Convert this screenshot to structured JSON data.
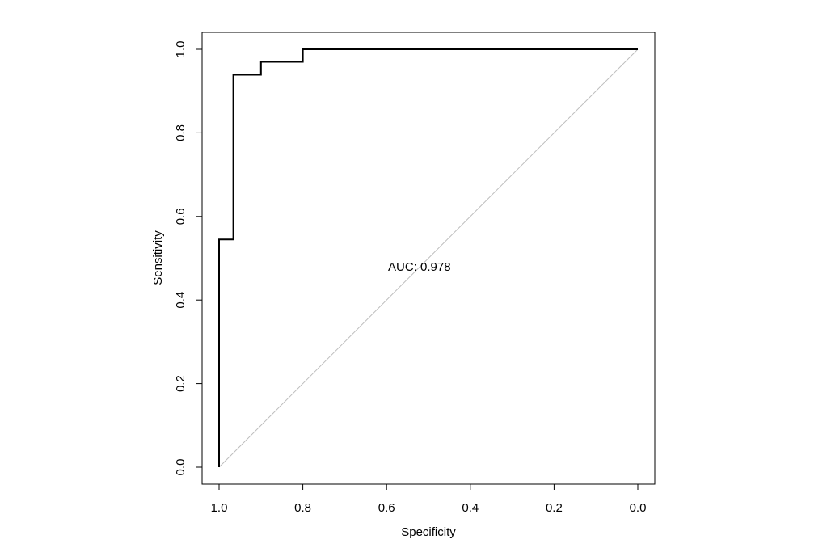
{
  "chart_data": {
    "type": "line",
    "title": "",
    "xlabel": "Specificity",
    "ylabel": "Sensitivity",
    "xlim": [
      1.0,
      0.0
    ],
    "ylim": [
      0.0,
      1.0
    ],
    "x_reversed": true,
    "grid": false,
    "legend": "none",
    "x_ticks": [
      "1.0",
      "0.8",
      "0.6",
      "0.4",
      "0.2",
      "0.0"
    ],
    "y_ticks": [
      "0.0",
      "0.2",
      "0.4",
      "0.6",
      "0.8",
      "1.0"
    ],
    "x_tick_values": [
      1.0,
      0.8,
      0.6,
      0.4,
      0.2,
      0.0
    ],
    "y_tick_values": [
      0.0,
      0.2,
      0.4,
      0.6,
      0.8,
      1.0
    ],
    "series": [
      {
        "color": "#000000",
        "x": [
          1.0,
          1.0,
          0.966,
          0.966,
          0.9,
          0.9,
          0.8,
          0.8,
          0.0
        ],
        "y": [
          0.0,
          0.545,
          0.545,
          0.939,
          0.939,
          0.97,
          0.97,
          1.0,
          1.0
        ]
      }
    ],
    "reference_line": {
      "x": [
        1.0,
        0.0
      ],
      "y": [
        0.0,
        1.0
      ],
      "color": "#bdbdbd"
    },
    "annotations": [
      {
        "text": "AUC: 0.978",
        "x": 0.5,
        "y": 0.48
      }
    ]
  }
}
